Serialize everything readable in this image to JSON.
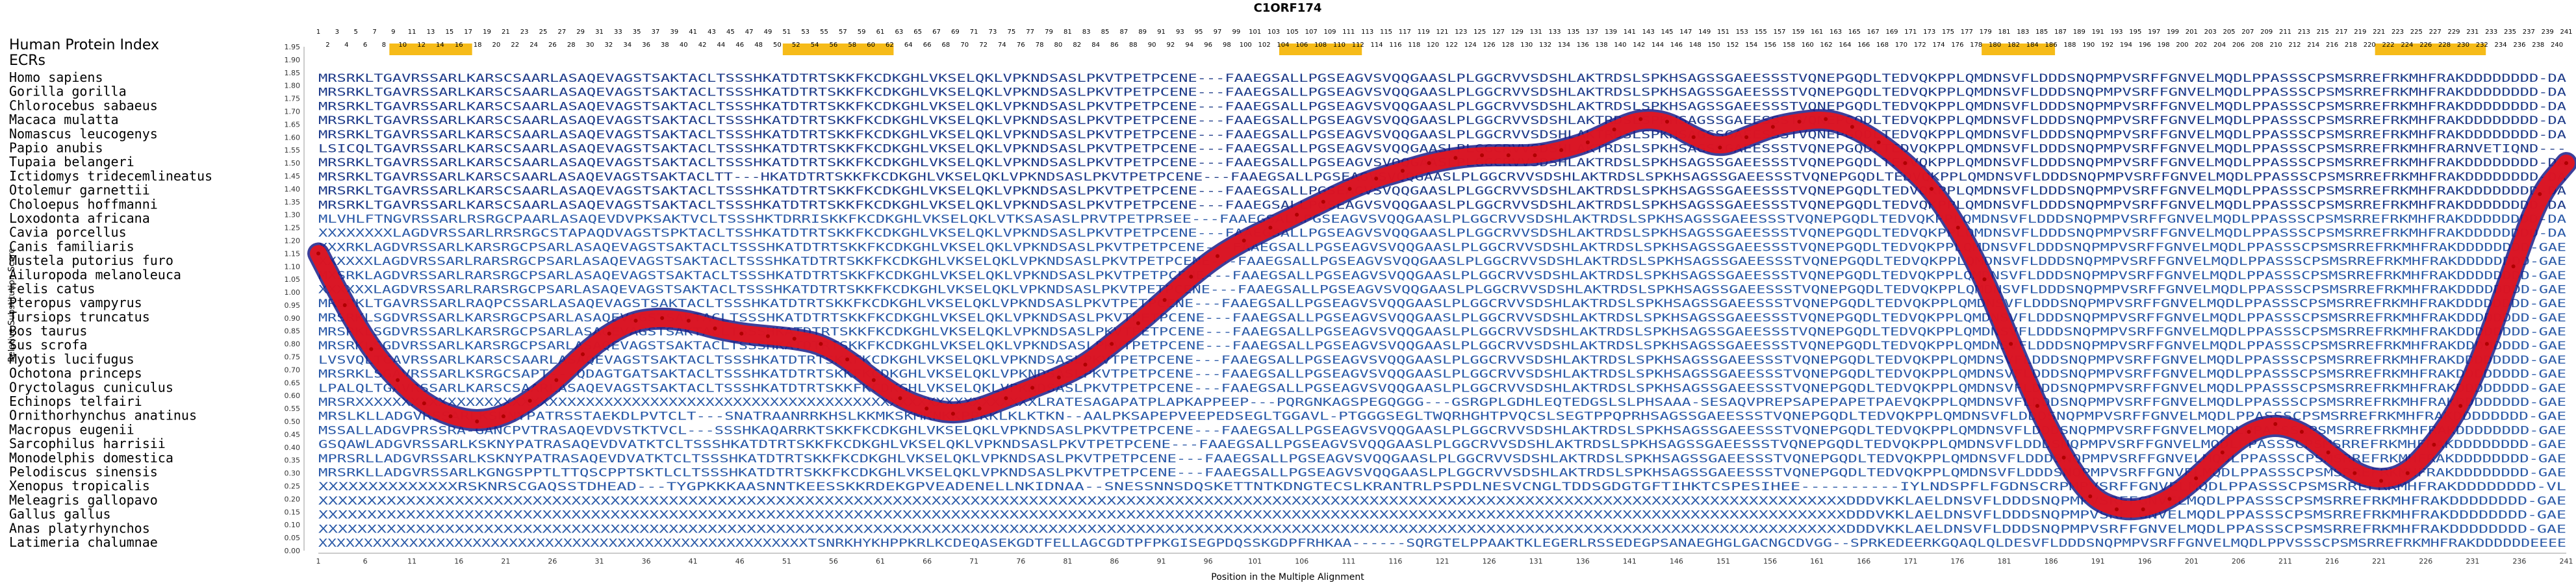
{
  "chart_data": {
    "type": "line",
    "title": "C1ORF174",
    "xlabel": "Position in the Multiple Alignment",
    "ylabel": "Relative Substitution Score",
    "ylim": [
      0,
      1.95
    ],
    "xlim": [
      1,
      241
    ],
    "y_ticks": [
      "0.00",
      "0.05",
      "0.10",
      "0.15",
      "0.20",
      "0.25",
      "0.30",
      "0.35",
      "0.40",
      "0.45",
      "0.50",
      "0.55",
      "0.60",
      "0.65",
      "0.70",
      "0.75",
      "0.80",
      "0.85",
      "0.90",
      "0.95",
      "1.00",
      "1.05",
      "1.10",
      "1.15",
      "1.20",
      "1.25",
      "1.30",
      "1.35",
      "1.40",
      "1.45",
      "1.50",
      "1.55",
      "1.60",
      "1.65",
      "1.70",
      "1.75",
      "1.80",
      "1.85",
      "1.90",
      "1.95"
    ],
    "x_ticks": [
      "1",
      "6",
      "11",
      "16",
      "21",
      "26",
      "31",
      "36",
      "41",
      "46",
      "51",
      "56",
      "61",
      "66",
      "71",
      "76",
      "81",
      "86",
      "91",
      "96",
      "101",
      "106",
      "111",
      "116",
      "121",
      "126",
      "131",
      "136",
      "141",
      "146",
      "151",
      "156",
      "161",
      "166",
      "171",
      "176",
      "181",
      "186",
      "191",
      "196",
      "201",
      "206",
      "211",
      "216",
      "221",
      "226",
      "231",
      "236",
      "241"
    ],
    "ecr_label": "ECRs",
    "index_label": "Human Protein Index",
    "ecr_regions": [
      [
        9,
        17
      ],
      [
        51,
        62
      ],
      [
        104,
        112
      ],
      [
        179,
        186
      ],
      [
        221,
        232
      ]
    ],
    "species": [
      "Homo sapiens",
      "Gorilla gorilla",
      "Chlorocebus sabaeus",
      "Macaca mulatta",
      "Nomascus leucogenys",
      "Papio anubis",
      "Tupaia belangeri",
      "Ictidomys tridecemlineatus",
      "Otolemur garnettii",
      "Choloepus hoffmanni",
      "Loxodonta africana",
      "Cavia porcellus",
      "Canis familiaris",
      "Mustela putorius furo",
      "Ailuropoda melanoleuca",
      "Felis catus",
      "Pteropus vampyrus",
      "Tursiops truncatus",
      "Bos taurus",
      "Sus scrofa",
      "Myotis lucifugus",
      "Ochotona princeps",
      "Oryctolagus cuniculus",
      "Echinops telfairi",
      "Ornithorhynchus anatinus",
      "Macropus eugenii",
      "Sarcophilus harrisii",
      "Monodelphis domestica",
      "Pelodiscus sinensis",
      "Xenopus tropicalis",
      "Meleagris gallopavo",
      "Gallus gallus",
      "Anas platyrhynchos",
      "Latimeria chalumnae"
    ],
    "sequences": [
      "MRSRKLTGAVRSSARLKARSCSAARLASAQEVAGSTSAKTACLTSSSHKATDTRTSKKFKCDKGHLVKSELQKLVPKNDSASLPKVTPETPCENE---FAAEGSALLPGSEAGVSVQQGAASLPLGGCRVVSDSHLAKTRDSLSPKHSAGSSGAEESSSTVQNEPGQDLTEDVQKPPLQMDNSVFLDDDSNQPMPVSRFFGNVELMQDLPPASSSCPSMSRREFRKMHFRAKDDDDDDDD-DA",
      "MRSRKLTGAVRSSARLKARSCSAARLASAQEVAGSTSAKTACLTSSSHKATDTRTSKKFKCDKGHLVKSELQKLVPKNDSASLPKVTPETPCENE---FAAEGSALLPGSEAGVSVQQGAASLPLGGCRVVSDSHLAKTRDSLSPKHSAGSSGAEESSSTVQNEPGQDLTEDVQKPPLQMDNSVFLDDDSNQPMPVSRFFGNVELMQDLPPASSSCPSMSRREFRKMHFRAKDDDDDDDD-DA",
      "MRSRKLTGAVRSSARLKARSCSAARLASAQEVAGSTSAKTACLTSSSHKATDTRTSKKFKCDKGHLVKSELQKLVPKNDSASLPKVTPETPCENE---FAAEGSALLPGSEAGVSVQQGAASLPLGGCRVVSDSHLAKTRDSLSPKHSAGSSGAEESSSTVQNEPGQDLTEDVQKPPLQMDNSVFLDDDSNQPMPVSRFFGNVELMQDLPPASSSCPSMSRREFRKMHFRAKDDDDDDDD-DA",
      "MRSRKLTGAVRSSARLKARSCSAARLASAQEVAGSTSAKTACLTSSSHKATDTRTSKKFKCDKGHLVKSELQKLVPKNDSASLPKVTPETPCENE---FAAEGSALLPGSEAGVSVQQGAASLPLGGCRVVSDSHLAKTRDSLSPKHSAGSSGAEESSSTVQNEPGQDLTEDVQKPPLQMDNSVFLDDDSNQPMPVSRFFGNVELMQDLPPASSSCPSMSRREFRKMHFRAKDDDDDDDD-DA",
      "MRSRKLTGAVRSSARLKARSCSAARLASAQEVAGSTSAKTACLTSSSHKATDTRTSKKFKCDKGHLVKSELQKLVPKNDSASLPKVTPETPCENE---FAAEGSALLPGSEAGVSVQQGAASLPLGGCRVVSDSHLAKTRDSLSPKHSAGSSGAEESSSTVQNEPGQDLTEDVQKPPLQMDNSVFLDDDSNQPMPVSRFFGNVELMQDLPPASSSCPSMSRREFRKMHFRAKDDDDDDDD-DA",
      "LSICQLTGAVRSSARLKARSCSAARLASAQEVAGSTSAKTACLTSSSHKATDTRTSKKFKCDKGHLVKSELQKLVPKNDSASLPKVTPETPCENE---FAAEGSALLPGSEAGVSVQQGAASLPLGGCRVVSDSHLAKTRDSLSPKHSAGSSGAEESSSTVQNEPGQDLTEDVQKPPLQMDNSVFLDDDSNQPMPVSRFFGNVELMQDLPPASSSCPSMSRREFRKMHFRARNVETIQND---",
      "MRSRKLTGAVRSSARLKARSCSAARLASAQEVAGSTSAKTACLTSSSHKATDTRTSKKFKCDKGHLVKSELQKLVPKNDSASLPKVTPETPCENE---FAAEGSALLPGSEAGVSVQQGAASLPLGGCRVVSDSHLAKTRDSLSPKHSAGSSGAEESSSTVQNEPGQDLTEDVQKPPLQMDNSVFLDDDSNQPMPVSRFFGNVELMQDLPPASSSCPSMSRREFRKMHFRAKDDDDDDDD-DA",
      "MRSRKLTGAVRSSARLKARSCSAARLASAQEVAGSTSAKTACLTT---HKATDTRTSKKFKCDKGHLVKSELQKLVPKNDSASLPKVTPETPCENE---FAAEGSALLPGSEAGVSVQQGAASLPLGGCRVVSDSHLAKTRDSLSPKHSAGSSGAEESSSTVQNEPGQDLTEDVQKPPLQMDNSVFLDDDSNQPMPVSRFFGNVELMQDLPPASSSCPSMSRREFRKMHFRAKDDDDDDDD-DA",
      "MRSRKLTGAVRSSARLKARSCSAARLASAQEVAGSTSAKTACLTSSSHKATDTRTSKKFKCDKGHLVKSELQKLVPKNDSASLPKVTPETPCENE---FAAEGSALLPGSEAGVSVQQGAASLPLGGCRVVSDSHLAKTRDSLSPKHSAGSSGAEESSSTVQNEPGQDLTEDVQKPPLQMDNSVFLDDDSNQPMPVSRFFGNVELMQDLPPASSSCPSMSRREFRKMHFRAKDDDDDDDD-DA",
      "MRSRKLTGAVRSSARLKARSCSAARLASAQEVAGSTSAKTACLTSSSHKATDTRTSKKFKCDKGHLVKSELQKLVPKNDSASLPKVTPETPCENE---FAAEGSALLPGSEAGVSVQQGAASLPLGGCRVVSDSHLAKTRDSLSPKHSAGSSGAEESSSTVQNEPGQDLTEDVQKPPLQMDNSVFLDDDSNQPMPVSRFFGNVELMQDLPPASSSCPSMSRREFRKMHFRAKDDDDDDDD-DA",
      "MLVHLFTNGVRSSARLRSRGCPAARLASAQEVDVPKSAKTVCLTSSSHKTDRRISKKFKCDKGHLVKSELQKLVTKSASASLPRVTPETPRSEE---FAAEGSALLPGSEAGVSVQQGAASLPLGGCRVVSDSHLAKTRDSLSPKHSAGSSGAEESSSTVQNEPGQDLTEDVQKPPLQMDNSVFLDDDSNQPMPVSRFFGNVELMQDLPPASSSCPSMSRREFRKMHFRAKDDDDDDDD-DA",
      "XXXXXXXXLAGDVRSSARLRRSRGCSTAPAQDVAGSTSPKTACLTSSHKATDTRTSKKFKCDKGHLVKSELQKLVPKNDSASLPKVTPETPCENE---FAAEGSALLPGSEAGVSVQQGAASLPLGGCRVVSDSHLAKTRDSLSPKHSAGSSGAEESSSTVQNEPGQDLTEDVQKPPLQMDNSVFLDDDSNQPMPVSRFFGNVELMQDLPPASSSCPSMSRREFRKMHFRAKDDDDDDDD-DA",
      "XXXRKLAGDVRSSARLKARSRGCPSARLASAQEVAGSTSAKTACLTSSSHKATDTRTSKKFKCDKGHLVKSELQKLVPKNDSASLPKVTPETPCENE---FAAEGSALLPGSEAGVSVQQGAASLPLGGCRVVSDSHLAKTRDSLSPKHSAGSSGAEESSSTVQNEPGQDLTEDVQKPPLQMDNSVFLDDDSNQPMPVSRFFGNVELMQDLPPASSSCPSMSRREFRKMHFRAKDDDDDDDD-GAE",
      "XXXXXXLAGDVRSSARLRARSRGCPSARLASAQEVAGSTSAKTACLTSSSHKATDTRTSKKFKCDKGHLVKSELQKLVPKNDSASLPKVTPETPCENE---FAAEGSALLPGSEAGVSVQQGAASLPLGGCRVVSDSHLAKTRDSLSPKHSAGSSGAEESSSTVQNEPGQDLTEDVQKPPLQMDNSVFLDDDSNQPMPVSRFFGNVELMQDLPPASSSCPSMSRREFRKMHFRAKDDDDDDDD-GAE",
      "MXSRKLAGDVRSSARLRARSRGCPSARLASAQEVAGSTSAKTACLTSSSHKATDTRTSKKFKCDKGHLVKSELQKLVPKNDSASLPKVTPETPCENE---FAAEGSALLPGSEAGVSVQQGAASLPLGGCRVVSDSHLAKTRDSLSPKHSAGSSGAEESSSTVQNEPGQDLTEDVQKPPLQMDNSVFLDDDSNQPMPVSRFFGNVELMQDLPPASSSCPSMSRREFRKMHFRAKDDDDDDDD-GAE",
      "XXXXXXLAGDVRSSARLRARSRGCPSARLASAQEVAGSTSAKTACLTSSSHKATDTRTSKKFKCDKGHLVKSELQKLVPKNDSASLPKVTPETPCENE---FAAEGSALLPGSEAGVSVQQGAASLPLGGCRVVSDSHLAKTRDSLSPKHSAGSSGAEESSSTVQNEPGQDLTEDVQKPPLQMDNSVFLDDDSNQPMPVSRFFGNVELMQDLPPASSSCPSMSRREFRKMHFRAKDDDDDDDD-GAE",
      "MRSRKLTGAVRSSARLRAQPCSSARLASAQEVAGSTSAKTACLTSSSHKATDTRTSKKFKCDKGHLVKSELQKLVPKNDSASLPKVTPETPCENE---FAAEGSALLPGSEAGVSVQQGAASLPLGGCRVVSDSHLAKTRDSLSPKHSAGSSGAEESSSTVQNEPGQDLTEDVQKPPLQMDNSVFLDDDSNQPMPVSRFFGNVELMQDLPPASSSCPSMSRREFRKMHFRAKDDDDDDDD-GAE",
      "MRSRKLSGDVRSSARLKARSRGCPSARLASAQEVAGSTSAKTACLTSSSHKATDTRTSKKFKCDKGHLVKSELQKLVPKNDSASLPKVTPETPCENE---FAAEGSALLPGSEAGVSVQQGAASLPLGGCRVVSDSHLAKTRDSLSPKHSAGSSGAEESSSTVQNEPGQDLTEDVQKPPLQMDNSVFLDDDSNQPMPVSRFFGNVELMQDLPPASSSCPSMSRREFRKMHFRAKDDDDDDDD-GAE",
      "MRSRKLSGDVRSSARLKARSRGCPSARLASAQEVAGSTSAKTACLTSSSHKATDTRTSKKFKCDKGHLVKSELQKLVPKNDSASLPKVTPETPCENE---FAAEGSALLPGSEAGVSVQQGAASLPLGGCRVVSDSHLAKTRDSLSPKHSAGSSGAEESSSTVQNEPGQDLTEDVQKPPLQMDNSVFLDDDSNQPMPVSRFFGNVELMQDLPPASSSCPSMSRREFRKMHFRAKDDDDDDDD-GAE",
      "MRSRKLSGDVRSSARLKARSRGCPSARLASAQEVAGSTSAKTACLTSSSHKATDTRTSKKFKCDKGHLVKSELQKLVPKNDSASLPKVTPETPCENE---FAAEGSALLPGSEAGVSVQQGAASLPLGGCRVVSDSHLAKTRDSLSPKHSAGSSGAEESSSTVQNEPGQDLTEDVQKPPLQMDNSVFLDDDSNQPMPVSRFFGNVELMQDLPPASSSCPSMSRREFRKMHFRAKDDDDDDDD-GAE",
      "LVSVQLTGAVRSSARLKARSCSAARLASAQEVAGSTSAKTACLTSSSHKATDTRTSKKFKCDKGHLVKSELQKLVPKNDSASLPKVTPETPCENE---FAAEGSALLPGSEAGVSVQQGAASLPLGGCRVVSDSHLAKTRDSLSPKHSAGSSGAEESSSTVQNEPGQDLTEDVQKPPLQMDNSVFLDDDSNQPMPVSRFFGNVELMQDLPPASSSCPSMSRREFRKMHFRAKDDDDDDDD-GAE",
      "MRSRKLSGAVRSSARLKSRGCSAPT---QDAGTGATSAKTACLTSSSHKATDTRTSKKFKCDKGHLVKSELQKLVPKNDSASLPKVTPETPCENE---FAAEGSALLPGSEAGVSVQQGAASLPLGGCRVVSDSHLAKTRDSLSPKHSAGSSGAEESSSTVQNEPGQDLTEDVQKPPLQMDNSVFLDDDSNQPMPVSRFFGNVELMQDLPPASSSCPSMSRREFRKMHFRAKDDDDDDDD-GAE",
      "LPALQLTGAVRSSARLKARSCSAARLASAQEVAGSTSAKTACLTSSSHKATDTRTSKKFKCDKGHLVKSELQKLVPKNDSASLPKVTPETPCENE---FAAEGSALLPGSEAGVSVQQGAASLPLGGCRVVSDSHLAKTRDSLSPKHSAGSSGAEESSSTVQNEPGQDLTEDVQKPPLQMDNSVFLDDDSNQPMPVSRFFGNVELMQDLPPASSSCPSMSRREFRKMHFRAKDDDDDDDD-GAE",
      "MRSRXXXXXXXXXXXXXXXXXXXXXXXXXXXXXXXXXXXXXXXXXXXXXXXXXXXXXXXXXXXXXXXXXXXXXXXXXXLRATESAGAPATPLAPKAPPEEP---PQRGNKAGSPEGQGGG---GSRGPLGDHLEQTEDGSLSLPHSAAA-SESAQVPREPSAPEPAPETPAEVQKPPLQMDNSVFLDDDSNQPMPVSRFFGNVELMQDLPPASSSCPSMSRREFRKMHFRAKDDDDDDDD-GAE",
      "MRSLKLLADGVRSSARLKSKNYPATRSSTAEKDLPVTCLT---SNATRAANRRKHSLKKMKSKMKNKKPPKKLKLKTKN--AALPKSAPEPVEEPEDSEGLTGGAVL-PTGGGSEGLTWQRHGHTPVQCSLSEGTPPQPRHSAGSSGAEESSSTVQNEPGQDLTEDVQKPPLQMDNSVFLDDDSNQPMPVSRFFGNVELMQDLPPASSSCPSMSRREFRKMHFRAKDDDDDDDD-GAE",
      "MSSALLADGVPRSSRA-GANCPVTRASAQEVDVSTKTVCL---SSSHKAQARRKTSKKFKCDKGHLVKSELQKLVPKNDSASLPKVTPETPCENE---FAAEGSALLPGSEAGVSVQQGAASLPLGGCRVVSDSHLAKTRDSLSPKHSAGSSGAEESSSTVQNEPGQDLTEDVQKPPLQMDNSVFLDDDSNQPMPVSRFFGNVELMQDLPPASSSCPSMSRREFRKMHFRAKDDDDDDDD-GAE",
      "GSQAWLADGVRSSARLKSKNYPATRASAQEVDVATKTCLTSSSHKATDTRTSKKFKCDKGHLVKSELQKLVPKNDSASLPKVTPETPCENE---FAAEGSALLPGSEAGVSVQQGAASLPLGGCRVVSDSHLAKTRDSLSPKHSAGSSGAEESSSTVQNEPGQDLTEDVQKPPLQMDNSVFLDDDSNQPMPVSRFFGNVELMQDLPPASSSCPSMSRREFRKMHFRAKDDDDDDDD-GAE",
      "MPRSRLLADGVRSSARLKSKNYPATRASAQEVDVATKTCLTSSSHKATDTRTSKKFKCDKGHLVKSELQKLVPKNDSASLPKVTPETPCENE---FAAEGSALLPGSEAGVSVQQGAASLPLGGCRVVSDSHLAKTRDSLSPKHSAGSSGAEESSSTVQNEPGQDLTEDVQKPPLQMDNSVFLDDDSNQPMPVSRFFGNVELMQDLPPASSSCPSMSRREFRKMHFRAKDDDDDDDD-GAE",
      "MRSRKLLADGVRSSARLKGNGSPPTLTTQSCPPTSKTLCLTSSSHKATDTRTSKKFKCDKGHLVKSELQKLVPKNDSASLPKVTPETPCENE---FAAEGSALLPGSEAGVSVQQGAASLPLGGCRVVSDSHLAKTRDSLSPKHSAGSSGAEESSSTVQNEPGQDLTEDVQKPPLQMDNSVFLDDDSNQPMPVSRFFGNVELMQDLPPASSSCPSMSRREFRKMHFRAKDDDDDDDD-GAE",
      "XXXXXXXXXXXXXXRSKNRSCGAQSSTDHEAD---TYGPKKKAASNNTKEESSKKRDEKGPVEADENELLNKIDNAA--SNESSNNSDQSKETTNTKDNGTECSLKRANTRLPSPDLNESVCNGLTDDSGDGTGFTIHKTCSPESIHEE----------IYLNDSPFLFGDNSCRPMPVSRFFGNVELMQDLPPASSSCPSMSRREFRKMHFRAKDDDDDDDD-VL",
      "XXXXXXXXXXXXXXXXXXXXXXXXXXXXXXXXXXXXXXXXXXXXXXXXXXXXXXXXXXXXXXXXXXXXXXXXXXXXXXXXXXXXXXXXXXXXXXXXXXXXXXXXXXXXXXXXXXXXXXXXXXXXXXXXXXXXXXXXXXXXXXXXXXXXXXXXXXXXXDDDVKKLAELDNSVFLDDDSNQPMPVSRFFGNVELMQDLPPASSSCPSMSRREFRKMHFRAKDDDDDDDD-GAE",
      "XXXXXXXXXXXXXXXXXXXXXXXXXXXXXXXXXXXXXXXXXXXXXXXXXXXXXXXXXXXXXXXXXXXXXXXXXXXXXXXXXXXXXXXXXXXXXXXXXXXXXXXXXXXXXXXXXXXXXXXXXXXXXXXXXXXXXXXXXXXXXXXXXXXXXXXXXXXXXDDDVKKLAELDNSVFLDDDSNQPMPVSRFFGNVELMQDLPPASSSCPSMSRREFRKMHFRAKDDDDDDDD-GAE",
      "XXXXXXXXXXXXXXXXXXXXXXXXXXXXXXXXXXXXXXXXXXXXXXXXXXXXXXXXXXXXXXXXXXXXXXXXXXXXXXXXXXXXXXXXXXXXXXXXXXXXXXXXXXXXXXXXXXXXXXXXXXXXXXXXXXXXXXXXXXXXXXXXXXXXXXXXXXXXXDDDVKKLAELDNSVFLDDDSNQPMPVSRFFGNVELMQDLPPASSSCPSMSRREFRKMHFRAKDDDDDDDD-GAE",
      "XXXXXXXXXXXXXXXXXXXXXXXXXXXXXXXXXXXXXXXXXXXXXXXXXXXXXXTSNRKHYKHPPKRLKCDEQASEKGDTFELLAGCGDTPFPKGISEGPDQSSKGDPFRHKAA------SQRGTELPPAAKTKLEGERLRSSEDEGPSANAEGHGLGACNGCDVGG--SPRKEDEERKGQAQLQLDESVFLDDDSNQPMPVSRFFGNVELMQDLPPVSSSCPSMSRREFRKMHFRAKDDDDDDEEEE"
    ],
    "series": [
      {
        "values": [
          1.15,
          0.95,
          0.78,
          0.66,
          0.57,
          0.52,
          0.5,
          0.52,
          0.58,
          0.66,
          0.76,
          0.84,
          0.89,
          0.9,
          0.89,
          0.86,
          0.84,
          0.83,
          0.82,
          0.8,
          0.74,
          0.66,
          0.59,
          0.55,
          0.53,
          0.55,
          0.59,
          0.63,
          0.67,
          0.72,
          0.8,
          0.88,
          0.97,
          1.06,
          1.14,
          1.2,
          1.25,
          1.3,
          1.35,
          1.4,
          1.44,
          1.47,
          1.5,
          1.52,
          1.53,
          1.53,
          1.53,
          1.55,
          1.58,
          1.63,
          1.67,
          1.66,
          1.6,
          1.56,
          1.6,
          1.64,
          1.66,
          1.67,
          1.64,
          1.58,
          1.5,
          1.4,
          1.25,
          1.05,
          0.8,
          0.56,
          0.36,
          0.21,
          0.16,
          0.16,
          0.2,
          0.28,
          0.38,
          0.46,
          0.49,
          0.46,
          0.38,
          0.3,
          0.27,
          0.3,
          0.41,
          0.56,
          0.8,
          1.1,
          1.38,
          1.5
        ]
      }
    ]
  }
}
